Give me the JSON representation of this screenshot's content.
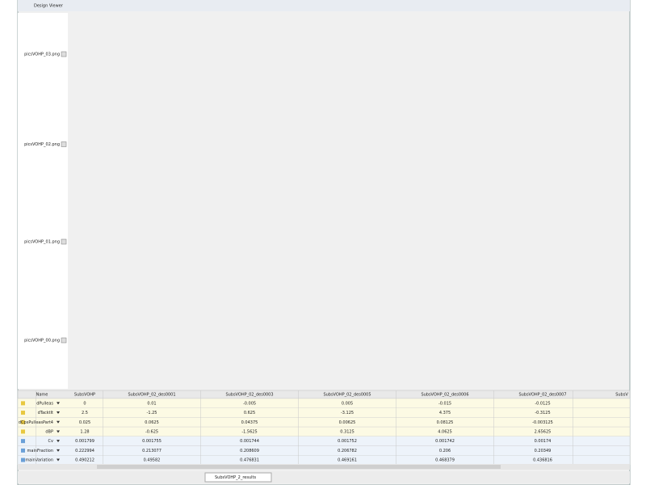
{
  "window": {
    "title": "Design Viewer"
  },
  "image_rows": [
    {
      "label": "picsVOHP_03.png"
    },
    {
      "label": "picsVOHP_02.png"
    },
    {
      "label": "picsVOHP_01.png"
    },
    {
      "label": "picsVOHP_00.png"
    }
  ],
  "table": {
    "header": [
      "Name",
      "SubsVOHP",
      "SubsVOHP_02_des0001",
      "SubsVOHP_02_des0003",
      "SubsVOHP_02_des0005",
      "SubsVOHP_02_des0006",
      "SubsVOHP_02_des0007",
      "SubsV"
    ],
    "rows": [
      [
        "dPulleas",
        "0",
        "0.01",
        "-0.005",
        "0.005",
        "-0.015",
        "-0.0125"
      ],
      [
        "dTacktlt",
        "2.5",
        "-1.25",
        "0.625",
        "-3.125",
        "4.375",
        "-0.3125"
      ],
      [
        "dCpsPulleasPart4",
        "0.025",
        "0.0625",
        "0.04375",
        "0.00625",
        "0.08125",
        "-0.003125"
      ],
      [
        "dBP",
        "1.28",
        "-0.625",
        "-1.5625",
        "0.3125",
        "4.0625",
        "2.65625"
      ],
      [
        "Cv",
        "0.001799",
        "0.001755",
        "0.001744",
        "0.001752",
        "0.001742",
        "0.00174"
      ],
      [
        "mainFraction",
        "0.222994",
        "0.213077",
        "0.208609",
        "0.206782",
        "0.206",
        "0.20349"
      ],
      [
        "mainVariation",
        "0.490212",
        "0.49582",
        "0.476831",
        "0.469161",
        "0.468379",
        "0.436816"
      ]
    ]
  },
  "taskbar": {
    "tab": "SubsVOHP_2_results"
  }
}
